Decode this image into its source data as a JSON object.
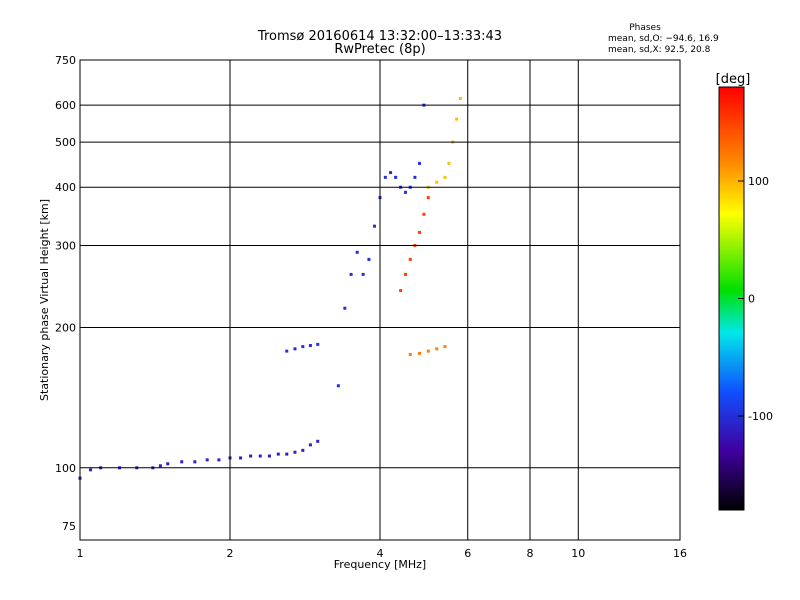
{
  "chart_data": {
    "type": "scatter",
    "title": "Tromsø 20160614 13:32:00–13:33:43",
    "subtitle": "RwPretec (8p)",
    "xlabel": "Frequency [MHz]",
    "ylabel": "Stationary phase Virtual Height [km]",
    "x_scale": "log",
    "y_scale": "log",
    "xlim": [
      1,
      16
    ],
    "ylim": [
      70,
      750
    ],
    "x_ticks": [
      1,
      2,
      4,
      6,
      8,
      10,
      16
    ],
    "x_tick_labels": [
      "1",
      "2",
      "4",
      "6",
      "8",
      "10",
      "16"
    ],
    "y_ticks": [
      75,
      100,
      200,
      300,
      400,
      500,
      600,
      750
    ],
    "y_tick_labels": [
      "75",
      "100",
      "200",
      "300",
      "400",
      "500",
      "600",
      "750"
    ],
    "grid": true,
    "stats": {
      "heading": "Phases",
      "line_o": "mean, sd,O: −94.6, 16.9",
      "line_x": "mean, sd,X:  92.5, 20.8"
    },
    "colorbar": {
      "label": "[deg]",
      "range": [
        -180,
        180
      ],
      "ticks": [
        100,
        0,
        -100
      ],
      "tick_labels": [
        "100",
        "0",
        "-100"
      ]
    },
    "traces": [
      {
        "x": [
          1.0,
          1.05,
          1.1,
          1.2,
          1.3,
          1.4,
          1.45,
          1.5,
          1.6,
          1.7,
          1.8,
          1.9,
          2.0,
          2.1,
          2.2,
          2.3,
          2.4,
          2.5,
          2.6,
          2.7,
          2.8,
          2.9,
          3.0
        ],
        "y": [
          95,
          99,
          100,
          100,
          100,
          100,
          101,
          102,
          103,
          103,
          104,
          104,
          105,
          105,
          106,
          106,
          106,
          107,
          107,
          108,
          109,
          112,
          114
        ],
        "phase": -110
      },
      {
        "x": [
          2.6,
          2.7,
          2.8,
          2.9,
          3.0
        ],
        "y": [
          178,
          180,
          182,
          183,
          184
        ],
        "phase": -100
      },
      {
        "x": [
          3.3,
          3.4,
          3.5,
          3.6,
          3.7,
          3.8,
          3.9,
          4.0,
          4.1,
          4.2,
          4.3,
          4.4,
          4.5,
          4.6,
          4.7,
          4.8,
          4.9
        ],
        "y": [
          150,
          220,
          260,
          290,
          260,
          280,
          330,
          380,
          420,
          430,
          420,
          400,
          390,
          400,
          420,
          450,
          600
        ],
        "phase": -100
      },
      {
        "x": [
          4.4,
          4.5,
          4.6,
          4.7,
          4.8,
          4.9,
          5.0
        ],
        "y": [
          240,
          260,
          280,
          300,
          320,
          350,
          380
        ],
        "phase": 150
      },
      {
        "x": [
          5.0,
          5.2,
          5.4,
          5.5,
          5.6,
          5.7,
          5.8
        ],
        "y": [
          400,
          410,
          420,
          450,
          500,
          560,
          620
        ],
        "phase": 95
      },
      {
        "x": [
          4.6,
          4.8,
          5.0,
          5.2,
          5.4
        ],
        "y": [
          175,
          176,
          178,
          180,
          182
        ],
        "phase": 120
      }
    ]
  }
}
